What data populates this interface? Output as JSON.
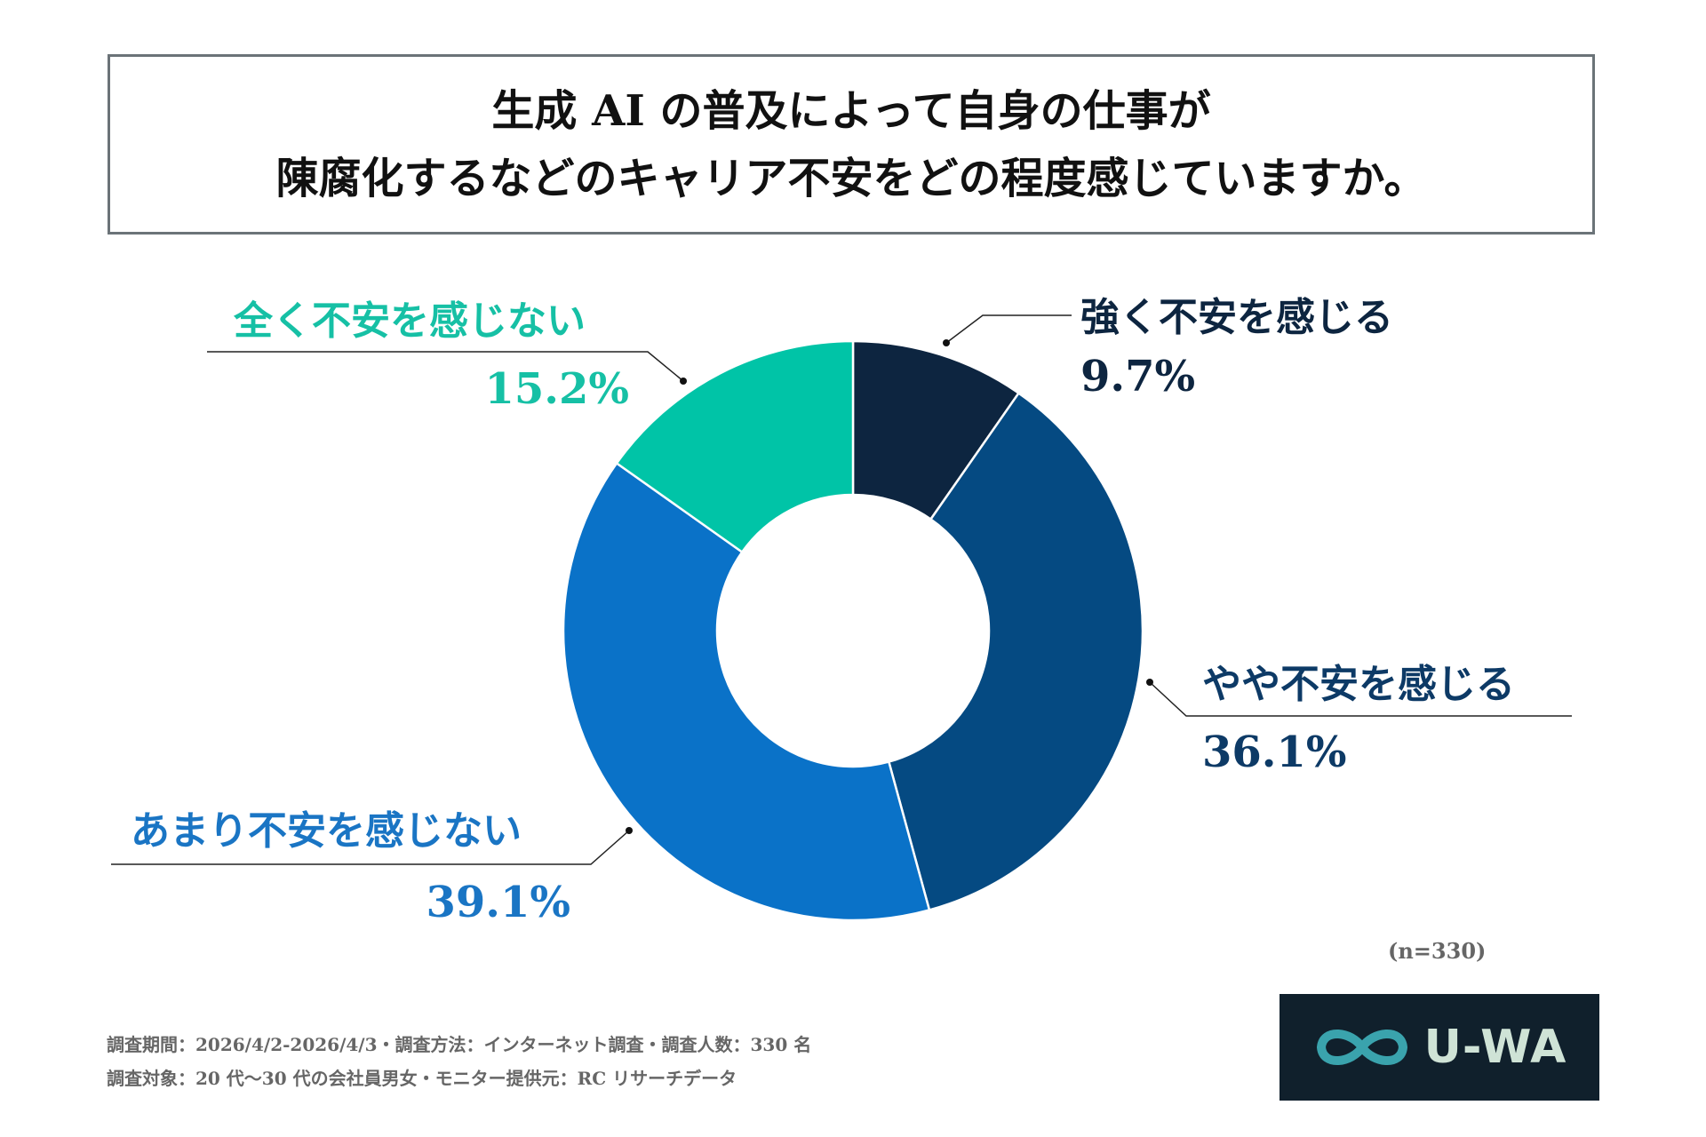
{
  "title": {
    "line1": "生成 AI の普及によって自身の仕事が",
    "line2": "陳腐化するなどのキャリア不安をどの程度感じていますか。"
  },
  "chart_data": {
    "type": "pie",
    "variant": "donut",
    "title": "生成 AI の普及によって自身の仕事が陳腐化するなどのキャリア不安をどの程度感じていますか。",
    "start": "top",
    "direction": "clockwise",
    "slices": [
      {
        "label": "強く不安を感じる",
        "value": 9.7,
        "display": "9.7%",
        "color": "#0d2540",
        "label_color": "#0d2540"
      },
      {
        "label": "やや不安を感じる",
        "value": 36.1,
        "display": "36.1%",
        "color": "#054a82",
        "label_color": "#0d3a66"
      },
      {
        "label": "あまり不安を感じない",
        "value": 39.1,
        "display": "39.1%",
        "color": "#0a72c8",
        "label_color": "#1a75c4"
      },
      {
        "label": "全く不安を感じない",
        "value": 15.2,
        "display": "15.2%",
        "color": "#00c4a7",
        "label_color": "#16c0a5"
      }
    ],
    "sample_size": "(n=330)"
  },
  "footer": {
    "line1": "調査期間：2026/4/2-2026/4/3・調査方法：インターネット調査・調査人数：330 名",
    "line2": "調査対象：20 代〜30 代の会社員男女・モニター提供元：RC リサーチデータ"
  },
  "logo": {
    "text": "U-WA",
    "icon": "infinity-icon"
  }
}
